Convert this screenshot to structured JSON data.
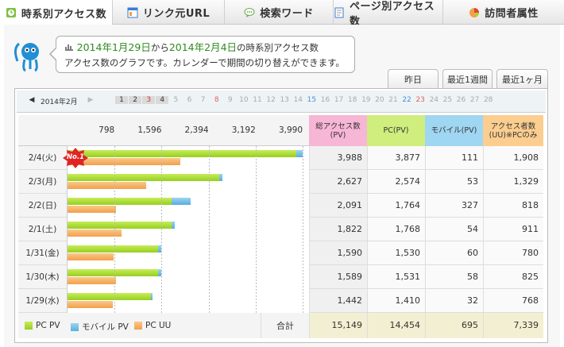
{
  "tabs": [
    {
      "label": "時系別アクセス数",
      "icon": "clock-icon"
    },
    {
      "label": "リンク元URL",
      "icon": "window-icon"
    },
    {
      "label": "検索ワード",
      "icon": "speech-bubble-icon"
    },
    {
      "label": "ページ別アクセス数",
      "icon": "page-icon"
    },
    {
      "label": "訪問者属性",
      "icon": "pie-chart-icon"
    }
  ],
  "intro": {
    "date1": "2014年1月29日",
    "from": "から",
    "date2": "2014年2月4日",
    "tail": "の時系別アクセス数",
    "line2": "アクセス数のグラフです。カレンダーで期間の切り替えができます。"
  },
  "period_tabs": [
    "昨日",
    "最近1週間",
    "最近1ヶ月"
  ],
  "calendar": {
    "month": "2014年2月",
    "days": [
      "1",
      "2",
      "3",
      "4",
      "5",
      "6",
      "7",
      "8",
      "9",
      "10",
      "11",
      "12",
      "13",
      "14",
      "15",
      "16",
      "17",
      "18",
      "19",
      "20",
      "21",
      "22",
      "23",
      "24",
      "25",
      "26",
      "27",
      "28"
    ]
  },
  "axis_ticks": [
    "798",
    "1,596",
    "2,394",
    "3,192",
    "3,990"
  ],
  "headers": {
    "total": "総アクセス数(PV)",
    "pc": "PC(PV)",
    "mobile": "モバイル(PV)",
    "uu": "アクセス者数(UU)※PCのみ"
  },
  "no1_badge": "No.1",
  "chart_data": {
    "type": "bar",
    "categories": [
      "2/4(火)",
      "2/3(月)",
      "2/2(日)",
      "2/1(土)",
      "1/31(金)",
      "1/30(木)",
      "1/29(水)"
    ],
    "xlim": [
      0,
      3990
    ],
    "series": [
      {
        "name": "PC PV",
        "values": [
          3877,
          2574,
          1764,
          1768,
          1530,
          1531,
          1410
        ]
      },
      {
        "name": "モバイル PV",
        "values": [
          111,
          53,
          327,
          54,
          60,
          58,
          32
        ]
      },
      {
        "name": "PC UU",
        "values": [
          1908,
          1329,
          818,
          911,
          780,
          825,
          768
        ]
      }
    ],
    "totals": [
      3988,
      2627,
      2091,
      1822,
      1590,
      1589,
      1442
    ]
  },
  "rows_display": [
    {
      "total": "3,988",
      "pc": "3,877",
      "mobile": "111",
      "uu": "1,908"
    },
    {
      "total": "2,627",
      "pc": "2,574",
      "mobile": "53",
      "uu": "1,329"
    },
    {
      "total": "2,091",
      "pc": "1,764",
      "mobile": "327",
      "uu": "818"
    },
    {
      "total": "1,822",
      "pc": "1,768",
      "mobile": "54",
      "uu": "911"
    },
    {
      "total": "1,590",
      "pc": "1,530",
      "mobile": "60",
      "uu": "780"
    },
    {
      "total": "1,589",
      "pc": "1,531",
      "mobile": "58",
      "uu": "825"
    },
    {
      "total": "1,442",
      "pc": "1,410",
      "mobile": "32",
      "uu": "768"
    }
  ],
  "summary": {
    "label": "合計",
    "total": "15,149",
    "pc": "14,454",
    "mobile": "695",
    "uu": "7,339"
  },
  "colors": {
    "pc": "#a6d92e",
    "mobile": "#6bb8e3",
    "uu": "#f5b263",
    "total_hdr": "#f7b6d6",
    "pc_hdr": "#cfee7e",
    "mobile_hdr": "#9fd6f2",
    "uu_hdr": "#fbce8f"
  }
}
